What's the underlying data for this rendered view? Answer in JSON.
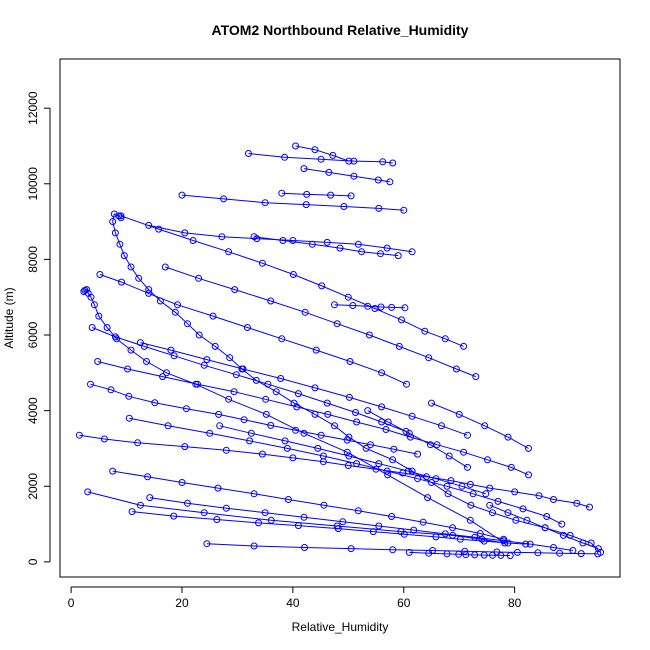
{
  "chart_data": {
    "type": "scatter",
    "title": "ATOM2 Northbound Relative_Humidity",
    "xlabel": "Relative_Humidity",
    "ylabel": "Altitude (m)",
    "xlim": [
      -2,
      99
    ],
    "ylim": [
      -400,
      13300
    ],
    "xticks": [
      0,
      20,
      40,
      60,
      80
    ],
    "yticks": [
      0,
      2000,
      4000,
      6000,
      8000,
      10000,
      12000
    ],
    "grid": false,
    "style": {
      "color": "#0000ff",
      "marker": "open-circle",
      "connected": true
    },
    "series": [
      {
        "x": [
          95.5,
          93.8,
          90.0,
          85.5,
          80.2,
          76.0,
          72.1,
          68.0,
          65.0,
          61.5,
          58.0,
          53.2,
          50.1,
          47.5,
          44.0,
          40.2,
          37.0,
          33.4,
          30.8,
          28.6,
          26.0,
          23.1,
          21.0,
          18.8,
          16.1,
          14.0,
          12.2,
          10.8,
          9.6,
          8.8,
          8.0,
          7.5,
          7.8,
          8.6,
          9.0
        ],
        "y": [
          250,
          500,
          700,
          900,
          1100,
          1300,
          1500,
          1800,
          2100,
          2400,
          2700,
          3000,
          3300,
          3600,
          3900,
          4200,
          4500,
          4800,
          5100,
          5400,
          5700,
          6000,
          6300,
          6600,
          6900,
          7200,
          7500,
          7800,
          8100,
          8400,
          8700,
          9000,
          9200,
          9150,
          9100
        ]
      },
      {
        "x": [
          3.0,
          12.5,
          24.0,
          36.1,
          48.0,
          59.5,
          68.8,
          74.1,
          78.2,
          72.0,
          64.3,
          57.1,
          49.8,
          42.0,
          35.2,
          28.4,
          22.5,
          17.2,
          13.6,
          10.8,
          8.2,
          6.5,
          5.0,
          4.2,
          3.6,
          3.1,
          2.8,
          2.5,
          2.3
        ],
        "y": [
          1850,
          1500,
          1300,
          1100,
          950,
          800,
          700,
          600,
          500,
          1100,
          1700,
          2300,
          2900,
          3400,
          3900,
          4300,
          4700,
          5000,
          5300,
          5600,
          5900,
          6200,
          6500,
          6800,
          7000,
          7100,
          7200,
          7180,
          7150
        ]
      },
      {
        "x": [
          1.5,
          6.0,
          12.0,
          20.5,
          28.0,
          34.5,
          40.0,
          45.5,
          50.0,
          55.0,
          59.8,
          64.1,
          68.5,
          72.0,
          75.5,
          80.0,
          84.4,
          87.0,
          91.2,
          93.5
        ],
        "y": [
          3350,
          3250,
          3150,
          3050,
          2950,
          2850,
          2750,
          2650,
          2550,
          2450,
          2350,
          2250,
          2150,
          2050,
          1950,
          1850,
          1750,
          1650,
          1550,
          1450
        ]
      },
      {
        "x": [
          24.5,
          33.0,
          42.1,
          50.5,
          58.0,
          65.2,
          71.0,
          76.8,
          80.5,
          84.2,
          88.1,
          92.0,
          95.0
        ],
        "y": [
          480,
          420,
          380,
          350,
          320,
          300,
          280,
          260,
          250,
          240,
          230,
          220,
          210
        ]
      },
      {
        "x": [
          11.0,
          18.5,
          26.3,
          33.8,
          41.0,
          48.2,
          54.5,
          60.1,
          65.8,
          70.2,
          74.5,
          78.8,
          82.0
        ],
        "y": [
          1330,
          1210,
          1120,
          1030,
          960,
          880,
          800,
          730,
          660,
          600,
          550,
          500,
          470
        ]
      },
      {
        "x": [
          3.5,
          7.2,
          10.4,
          15.1,
          20.8,
          26.6,
          31.2,
          36.0,
          40.5,
          45.1,
          49.8,
          54.0,
          58.2,
          62.5
        ],
        "y": [
          4700,
          4550,
          4380,
          4210,
          4050,
          3900,
          3760,
          3610,
          3480,
          3350,
          3220,
          3100,
          2980,
          2850
        ]
      },
      {
        "x": [
          4.8,
          10.2,
          16.5,
          22.8,
          29.4,
          35.1,
          40.7,
          46.3,
          51.5,
          56.8,
          61.2,
          66.0,
          70.8,
          75.1,
          79.4,
          82.5
        ],
        "y": [
          5300,
          5100,
          4900,
          4700,
          4500,
          4300,
          4100,
          3900,
          3700,
          3500,
          3300,
          3100,
          2900,
          2700,
          2500,
          2300
        ]
      },
      {
        "x": [
          5.2,
          9.1,
          14.0,
          19.2,
          25.6,
          31.8,
          38.0,
          44.2,
          50.3,
          56.0,
          60.5
        ],
        "y": [
          7600,
          7400,
          7100,
          6800,
          6500,
          6200,
          5900,
          5600,
          5300,
          5000,
          4700
        ]
      },
      {
        "x": [
          9.0,
          15.8,
          22.0,
          28.4,
          34.5,
          40.1,
          45.2,
          50.0,
          54.8,
          59.6,
          63.8,
          67.5,
          70.8
        ],
        "y": [
          9150,
          8800,
          8500,
          8200,
          7900,
          7600,
          7300,
          7000,
          6700,
          6400,
          6100,
          5900,
          5700
        ]
      },
      {
        "x": [
          14.0,
          20.5,
          27.2,
          33.5,
          40.0,
          46.2,
          51.8,
          57.0,
          61.5
        ],
        "y": [
          8900,
          8700,
          8600,
          8550,
          8500,
          8450,
          8400,
          8300,
          8200
        ]
      },
      {
        "x": [
          20.0,
          27.5,
          35.0,
          42.4,
          49.2,
          55.5,
          60.0
        ],
        "y": [
          9700,
          9600,
          9500,
          9450,
          9400,
          9350,
          9300
        ]
      },
      {
        "x": [
          32.0,
          38.5,
          45.1,
          51.0,
          56.2,
          58.0
        ],
        "y": [
          10800,
          10700,
          10650,
          10600,
          10580,
          10550
        ]
      },
      {
        "x": [
          40.5,
          44.0,
          47.2,
          50.1
        ],
        "y": [
          11000,
          10900,
          10750,
          10600
        ]
      },
      {
        "x": [
          42.0,
          46.5,
          51.0,
          55.4,
          57.5
        ],
        "y": [
          10400,
          10300,
          10200,
          10100,
          10050
        ]
      },
      {
        "x": [
          38.0,
          42.5,
          46.8,
          50.5
        ],
        "y": [
          9750,
          9720,
          9700,
          9680
        ]
      },
      {
        "x": [
          33.0,
          38.2,
          43.5,
          48.5,
          52.4,
          55.8,
          59.0
        ],
        "y": [
          8600,
          8500,
          8400,
          8300,
          8200,
          8150,
          8100
        ]
      },
      {
        "x": [
          47.5,
          50.8,
          53.5,
          55.9,
          57.8,
          60.2
        ],
        "y": [
          6800,
          6780,
          6760,
          6740,
          6730,
          6720
        ]
      },
      {
        "x": [
          10.5,
          17.5,
          25.0,
          32.2,
          39.0,
          45.5,
          51.5,
          57.0,
          62.5,
          67.8,
          72.5,
          77.0,
          81.5,
          85.8,
          88.5
        ],
        "y": [
          3800,
          3600,
          3400,
          3200,
          3000,
          2800,
          2600,
          2400,
          2200,
          2000,
          1800,
          1600,
          1400,
          1200,
          1000
        ]
      },
      {
        "x": [
          14.2,
          21.0,
          28.0,
          35.0,
          42.0,
          49.0,
          55.5,
          61.8,
          67.5,
          72.8,
          78.0,
          82.8,
          87.0,
          90.5
        ],
        "y": [
          1700,
          1550,
          1420,
          1300,
          1180,
          1060,
          950,
          840,
          740,
          650,
          560,
          470,
          380,
          300
        ]
      },
      {
        "x": [
          7.5,
          13.8,
          20.0,
          26.5,
          33.0,
          39.2,
          45.6,
          51.8,
          57.8,
          63.5,
          68.8,
          73.8,
          78.0
        ],
        "y": [
          2400,
          2250,
          2100,
          1950,
          1800,
          1650,
          1500,
          1350,
          1200,
          1050,
          900,
          750,
          600
        ]
      },
      {
        "x": [
          3.8,
          8.0,
          13.2,
          18.6,
          24.0,
          29.8,
          35.5,
          41.0,
          46.2,
          51.3,
          56.0,
          60.4
        ],
        "y": [
          6200,
          5950,
          5700,
          5450,
          5200,
          4950,
          4700,
          4450,
          4200,
          3950,
          3700,
          3450
        ]
      },
      {
        "x": [
          12.5,
          18.0,
          24.5,
          31.0,
          37.8,
          44.0,
          50.2,
          56.0,
          61.5,
          66.8,
          71.5
        ],
        "y": [
          5800,
          5600,
          5350,
          5100,
          4850,
          4600,
          4350,
          4100,
          3850,
          3600,
          3350
        ]
      },
      {
        "x": [
          17.0,
          23.0,
          29.5,
          36.0,
          42.2,
          48.0,
          53.8,
          59.2,
          64.5,
          69.5,
          73.0
        ],
        "y": [
          7800,
          7500,
          7200,
          6900,
          6600,
          6300,
          6000,
          5700,
          5400,
          5100,
          4900
        ]
      },
      {
        "x": [
          61.0,
          64.5,
          67.8,
          69.9,
          71.2,
          72.8,
          74.5,
          76.0,
          77.5,
          79.2
        ],
        "y": [
          250,
          230,
          210,
          200,
          190,
          185,
          180,
          175,
          170,
          165
        ]
      },
      {
        "x": [
          26.8,
          32.5,
          38.6,
          44.5,
          50.1,
          55.5,
          60.8,
          65.8,
          70.5,
          74.8
        ],
        "y": [
          3600,
          3400,
          3200,
          3000,
          2800,
          2600,
          2400,
          2200,
          2000,
          1800
        ]
      },
      {
        "x": [
          53.5,
          57.2,
          61.0,
          64.8,
          68.2,
          71.5
        ],
        "y": [
          4000,
          3700,
          3400,
          3100,
          2800,
          2500
        ]
      },
      {
        "x": [
          65.0,
          70.0,
          74.6,
          78.8,
          82.5
        ],
        "y": [
          4200,
          3900,
          3600,
          3300,
          3000
        ]
      },
      {
        "x": [
          75.5,
          78.8,
          82.2,
          85.5,
          88.8,
          92.3,
          95.1
        ],
        "y": [
          1500,
          1300,
          1100,
          900,
          700,
          500,
          350
        ]
      }
    ]
  }
}
